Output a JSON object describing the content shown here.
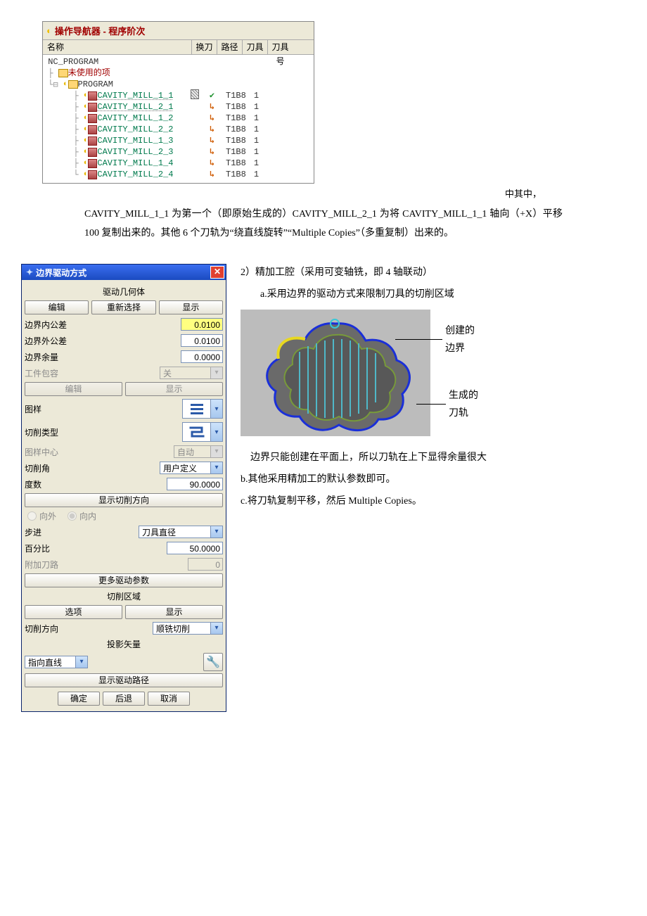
{
  "navigator": {
    "title": "操作导航器 - 程序阶次",
    "columns": [
      "名称",
      "换刀",
      "路径",
      "刀具",
      "刀具号"
    ],
    "root": "NC_PROGRAM",
    "unused": "未使用的项",
    "program": "PROGRAM",
    "ops": [
      {
        "name": "CAVITY_MILL_1_1",
        "chg": "slash",
        "path": "check",
        "tool": "T1B8",
        "num": "1",
        "dotted": true
      },
      {
        "name": "CAVITY_MILL_2_1",
        "chg": "",
        "path": "arrow",
        "tool": "T1B8",
        "num": "1",
        "dotted": true
      },
      {
        "name": "CAVITY_MILL_1_2",
        "chg": "",
        "path": "arrow",
        "tool": "T1B8",
        "num": "1",
        "dotted": false
      },
      {
        "name": "CAVITY_MILL_2_2",
        "chg": "",
        "path": "arrow",
        "tool": "T1B8",
        "num": "1",
        "dotted": false
      },
      {
        "name": "CAVITY_MILL_1_3",
        "chg": "",
        "path": "arrow",
        "tool": "T1B8",
        "num": "1",
        "dotted": false
      },
      {
        "name": "CAVITY_MILL_2_3",
        "chg": "",
        "path": "arrow",
        "tool": "T1B8",
        "num": "1",
        "dotted": false
      },
      {
        "name": "CAVITY_MILL_1_4",
        "chg": "",
        "path": "arrow",
        "tool": "T1B8",
        "num": "1",
        "dotted": false
      },
      {
        "name": "CAVITY_MILL_2_4",
        "chg": "",
        "path": "arrow",
        "tool": "T1B8",
        "num": "1",
        "dotted": false
      }
    ]
  },
  "para1_tail": "中其中，",
  "para1": "CAVITY_MILL_1_1 为第一个（即原始生成的）CAVITY_MILL_2_1 为将 CAVITY_MILL_1_1 轴向（+X）平移 100 复制出来的。其他 6 个刀轨为“绕直线旋转”“Multiple Copies”（多重复制）出来的。",
  "dialog": {
    "title": "边界驱动方式",
    "drive_geom": "驱动几何体",
    "btn_edit": "编辑",
    "btn_reselect": "重新选择",
    "btn_display": "显示",
    "inner_tol_label": "边界内公差",
    "inner_tol_value": "0.0100",
    "outer_tol_label": "边界外公差",
    "outer_tol_value": "0.0100",
    "margin_label": "边界余量",
    "margin_value": "0.0000",
    "part_contain_label": "工件包容",
    "part_contain_value": "关",
    "btn_edit2": "编辑",
    "btn_display2": "显示",
    "pattern_label": "图样",
    "cut_type_label": "切削类型",
    "pattern_center_label": "图样中心",
    "pattern_center_value": "自动",
    "cut_angle_label": "切削角",
    "cut_angle_value": "用户定义",
    "degree_label": "度数",
    "degree_value": "90.0000",
    "show_cut_dir": "显示切削方向",
    "radio_out": "向外",
    "radio_in": "向内",
    "step_label": "步进",
    "step_value": "刀具直径",
    "percent_label": "百分比",
    "percent_value": "50.0000",
    "extra_pass_label": "附加刀路",
    "extra_pass_value": "0",
    "more_params": "更多驱动参数",
    "cut_region": "切削区域",
    "btn_options": "选项",
    "btn_display3": "显示",
    "cut_dir_label": "切削方向",
    "cut_dir_value": "顺铣切削",
    "proj_vector": "投影矢量",
    "proj_value": "指向直线",
    "show_drive_path": "显示驱动路径",
    "btn_ok": "确定",
    "btn_back": "后退",
    "btn_cancel": "取消"
  },
  "right": {
    "line1": "2）精加工腔（采用可变轴铣，即 4 轴联动）",
    "line2": "a.采用边界的驱动方式来限制刀具的切削区域",
    "callout1": "创建的边界",
    "callout2": "生成的刀轨",
    "line3": "边界只能创建在平面上，所以刀轨在上下显得余量很大",
    "line4": "b.其他采用精加工的默认参数即可。",
    "line5": "c.将刀轨复制平移，然后 Multiple Copies。"
  },
  "colors": {
    "accent_blue": "#2b5aa8",
    "boundary_blue": "#1a2fd8",
    "toolpath_cyan": "#4fb8c8",
    "side_green": "#789a3a",
    "side_yellow": "#e8d820"
  }
}
